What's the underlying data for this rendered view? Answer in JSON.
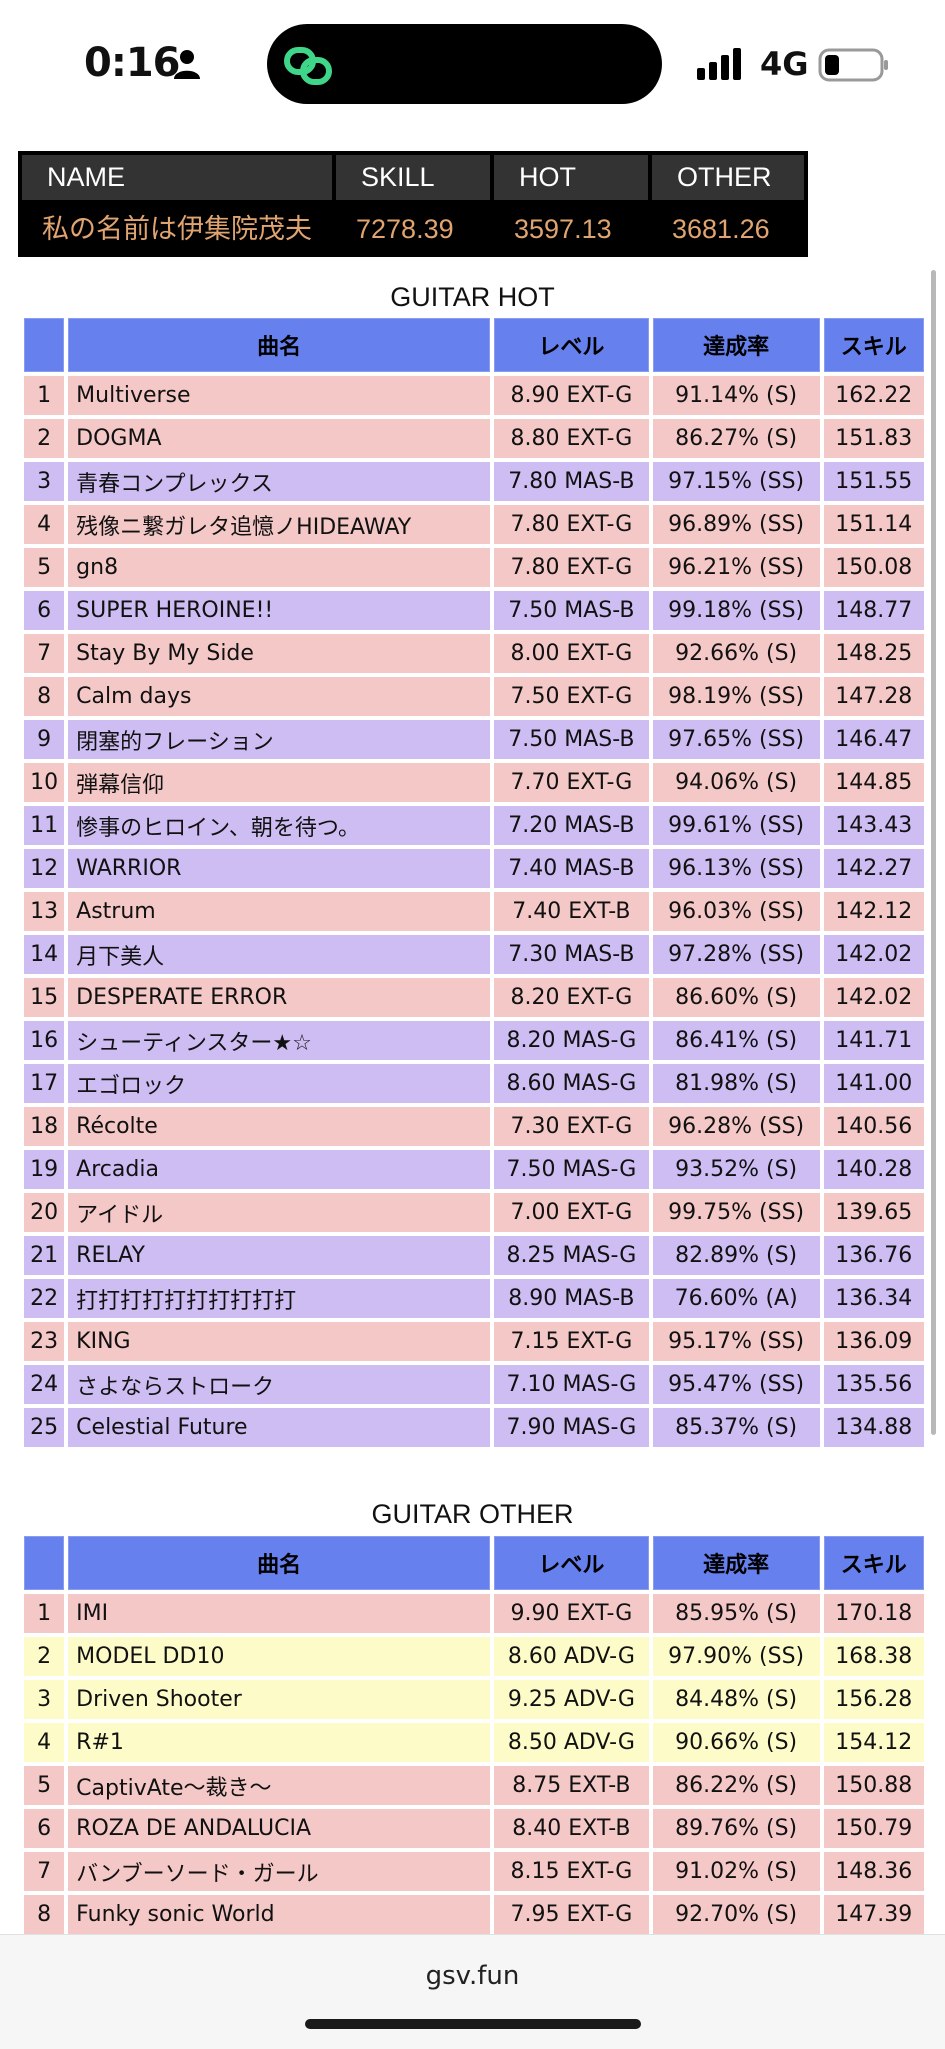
{
  "status": {
    "time": "0:16",
    "network": "4G"
  },
  "profile": {
    "headers": [
      "NAME",
      "SKILL",
      "HOT",
      "OTHER"
    ],
    "values": [
      "私の名前は伊集院茂夫",
      "7278.39",
      "3597.13",
      "3681.26"
    ]
  },
  "hot": {
    "title": "GUITAR HOT",
    "columns": [
      "",
      "曲名",
      "レベル",
      "達成率",
      "スキル"
    ],
    "rows": [
      {
        "no": "1",
        "song": "Multiverse",
        "level": "8.90 EXT-G",
        "rate": "91.14% (S)",
        "skill": "162.22",
        "color": "pink"
      },
      {
        "no": "2",
        "song": "DOGMA",
        "level": "8.80 EXT-G",
        "rate": "86.27% (S)",
        "skill": "151.83",
        "color": "pink"
      },
      {
        "no": "3",
        "song": "青春コンプレックス",
        "level": "7.80 MAS-B",
        "rate": "97.15% (SS)",
        "skill": "151.55",
        "color": "purple"
      },
      {
        "no": "4",
        "song": "残像ニ繋ガレタ追憶ノHIDEAWAY",
        "level": "7.80 EXT-G",
        "rate": "96.89% (SS)",
        "skill": "151.14",
        "color": "pink"
      },
      {
        "no": "5",
        "song": "gn8",
        "level": "7.80 EXT-G",
        "rate": "96.21% (SS)",
        "skill": "150.08",
        "color": "pink"
      },
      {
        "no": "6",
        "song": "SUPER HEROINE!!",
        "level": "7.50 MAS-B",
        "rate": "99.18% (SS)",
        "skill": "148.77",
        "color": "purple"
      },
      {
        "no": "7",
        "song": "Stay By My Side",
        "level": "8.00 EXT-G",
        "rate": "92.66% (S)",
        "skill": "148.25",
        "color": "pink"
      },
      {
        "no": "8",
        "song": "Calm days",
        "level": "7.50 EXT-G",
        "rate": "98.19% (SS)",
        "skill": "147.28",
        "color": "pink"
      },
      {
        "no": "9",
        "song": "閉塞的フレーション",
        "level": "7.50 MAS-B",
        "rate": "97.65% (SS)",
        "skill": "146.47",
        "color": "purple"
      },
      {
        "no": "10",
        "song": "弾幕信仰",
        "level": "7.70 EXT-G",
        "rate": "94.06% (S)",
        "skill": "144.85",
        "color": "pink"
      },
      {
        "no": "11",
        "song": "惨事のヒロイン、朝を待つ。",
        "level": "7.20 MAS-B",
        "rate": "99.61% (SS)",
        "skill": "143.43",
        "color": "purple"
      },
      {
        "no": "12",
        "song": "WARRIOR",
        "level": "7.40 MAS-B",
        "rate": "96.13% (SS)",
        "skill": "142.27",
        "color": "purple"
      },
      {
        "no": "13",
        "song": "Astrum",
        "level": "7.40 EXT-B",
        "rate": "96.03% (SS)",
        "skill": "142.12",
        "color": "pink"
      },
      {
        "no": "14",
        "song": "月下美人",
        "level": "7.30 MAS-B",
        "rate": "97.28% (SS)",
        "skill": "142.02",
        "color": "purple"
      },
      {
        "no": "15",
        "song": "DESPERATE ERROR",
        "level": "8.20 EXT-G",
        "rate": "86.60% (S)",
        "skill": "142.02",
        "color": "pink"
      },
      {
        "no": "16",
        "song": "シューティンスター★☆",
        "level": "8.20 MAS-G",
        "rate": "86.41% (S)",
        "skill": "141.71",
        "color": "purple"
      },
      {
        "no": "17",
        "song": "エゴロック",
        "level": "8.60 MAS-G",
        "rate": "81.98% (S)",
        "skill": "141.00",
        "color": "purple"
      },
      {
        "no": "18",
        "song": "Récolte",
        "level": "7.30 EXT-G",
        "rate": "96.28% (SS)",
        "skill": "140.56",
        "color": "pink"
      },
      {
        "no": "19",
        "song": "Arcadia",
        "level": "7.50 MAS-G",
        "rate": "93.52% (S)",
        "skill": "140.28",
        "color": "purple"
      },
      {
        "no": "20",
        "song": "アイドル",
        "level": "7.00 EXT-G",
        "rate": "99.75% (SS)",
        "skill": "139.65",
        "color": "pink"
      },
      {
        "no": "21",
        "song": "RELAY",
        "level": "8.25 MAS-G",
        "rate": "82.89% (S)",
        "skill": "136.76",
        "color": "purple"
      },
      {
        "no": "22",
        "song": "打打打打打打打打打打",
        "level": "8.90 MAS-B",
        "rate": "76.60% (A)",
        "skill": "136.34",
        "color": "purple"
      },
      {
        "no": "23",
        "song": "KING",
        "level": "7.15 EXT-G",
        "rate": "95.17% (SS)",
        "skill": "136.09",
        "color": "pink"
      },
      {
        "no": "24",
        "song": "さよならストローク",
        "level": "7.10 MAS-G",
        "rate": "95.47% (SS)",
        "skill": "135.56",
        "color": "purple"
      },
      {
        "no": "25",
        "song": "Celestial Future",
        "level": "7.90 MAS-G",
        "rate": "85.37% (S)",
        "skill": "134.88",
        "color": "purple"
      }
    ]
  },
  "other": {
    "title": "GUITAR OTHER",
    "columns": [
      "",
      "曲名",
      "レベル",
      "達成率",
      "スキル"
    ],
    "rows": [
      {
        "no": "1",
        "song": "IMI",
        "level": "9.90 EXT-G",
        "rate": "85.95% (S)",
        "skill": "170.18",
        "color": "pink"
      },
      {
        "no": "2",
        "song": "MODEL DD10",
        "level": "8.60 ADV-G",
        "rate": "97.90% (SS)",
        "skill": "168.38",
        "color": "yellow"
      },
      {
        "no": "3",
        "song": "Driven Shooter",
        "level": "9.25 ADV-G",
        "rate": "84.48% (S)",
        "skill": "156.28",
        "color": "yellow"
      },
      {
        "no": "4",
        "song": "R#1",
        "level": "8.50 ADV-G",
        "rate": "90.66% (S)",
        "skill": "154.12",
        "color": "yellow"
      },
      {
        "no": "5",
        "song": "CaptivAte〜裁き〜",
        "level": "8.75 EXT-B",
        "rate": "86.22% (S)",
        "skill": "150.88",
        "color": "pink"
      },
      {
        "no": "6",
        "song": "ROZA DE ANDALUCIA",
        "level": "8.40 EXT-B",
        "rate": "89.76% (S)",
        "skill": "150.79",
        "color": "pink"
      },
      {
        "no": "7",
        "song": "バンブーソード・ガール",
        "level": "8.15 EXT-G",
        "rate": "91.02% (S)",
        "skill": "148.36",
        "color": "pink"
      },
      {
        "no": "8",
        "song": "Funky sonic World",
        "level": "7.95 EXT-G",
        "rate": "92.70% (S)",
        "skill": "147.39",
        "color": "pink"
      }
    ]
  },
  "browser": {
    "url": "gsv.fun"
  },
  "icons": [
    "person-icon",
    "app-link-icon",
    "signal-icon",
    "battery-icon"
  ],
  "colors": {
    "header": "#6680ee",
    "pink": "#f5c8c8",
    "purple": "#cdbdf3",
    "yellow": "#fdfcc9",
    "profile_value": "#e0a470"
  }
}
